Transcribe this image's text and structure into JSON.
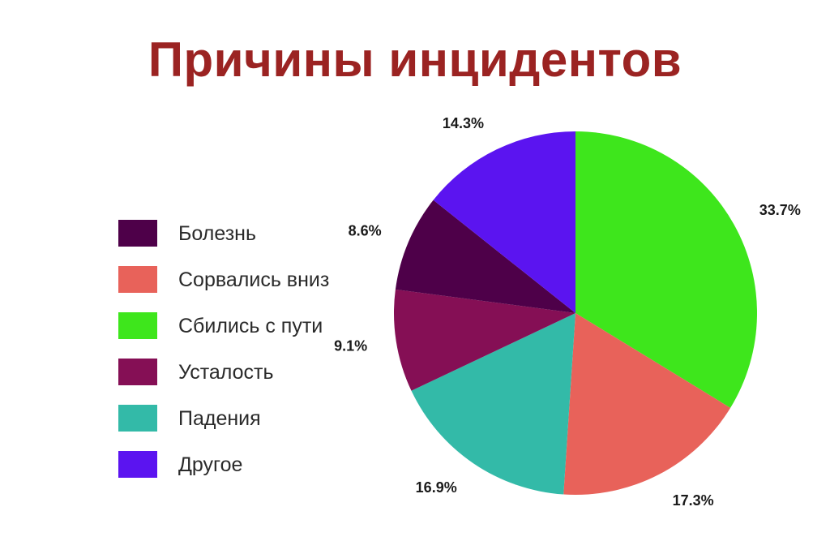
{
  "chart_data": {
    "type": "pie",
    "title": "Причины инцидентов",
    "slices": [
      {
        "label": "Сбились с пути",
        "value": 33.7,
        "value_label": "33.7%",
        "color": "#3ee61c"
      },
      {
        "label": "Сорвались вниз",
        "value": 17.3,
        "value_label": "17.3%",
        "color": "#e8625a"
      },
      {
        "label": "Падения",
        "value": 16.9,
        "value_label": "16.9%",
        "color": "#33baa8"
      },
      {
        "label": "Усталость",
        "value": 9.1,
        "value_label": "9.1%",
        "color": "#850f55"
      },
      {
        "label": "Болезнь",
        "value": 8.6,
        "value_label": "8.6%",
        "color": "#4e0049"
      },
      {
        "label": "Другое",
        "value": 14.3,
        "value_label": "14.3%",
        "color": "#5b14f0"
      }
    ],
    "legend": {
      "position": "left",
      "order": [
        "Болезнь",
        "Сорвались вниз",
        "Сбились с пути",
        "Усталость",
        "Падения",
        "Другое"
      ]
    },
    "start_angle": "top",
    "direction": "clockwise"
  }
}
